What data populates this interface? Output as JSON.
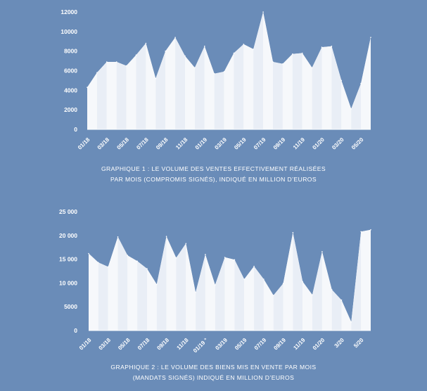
{
  "chart_data": [
    {
      "type": "area",
      "title": "GRAPHIQUE 1 : LE VOLUME DES VENTES EFFECTIVEMENT RÉALISÉES PAR MOIS (COMPROMIS SIGNÉS), INDIQUÉ EN MILLION D'EUROS",
      "caption_lines": [
        "GRAPHIQUE 1 : LE VOLUME DES VENTES EFFECTIVEMENT RÉALISÉES",
        "PAR MOIS (COMPROMIS SIGNÉS), INDIQUÉ EN MILLION D’EUROS"
      ],
      "ylim": [
        0,
        12000
      ],
      "yticks": [
        0,
        2000,
        4000,
        6000,
        8000,
        10000,
        12000
      ],
      "ytick_labels": [
        "0",
        "2000",
        "4000",
        "6000",
        "8000",
        "10000",
        "12000"
      ],
      "x_tick_labels": [
        "01/18",
        "03/18",
        "05/18",
        "07/18",
        "09/18",
        "11/18",
        "01/19",
        "03/19",
        "05/19",
        "07/19",
        "09/19",
        "11/19",
        "01/20",
        "03/20",
        "05/20"
      ],
      "values": [
        4300,
        5800,
        6900,
        6900,
        6500,
        7600,
        8800,
        5200,
        8000,
        9400,
        7500,
        6300,
        8500,
        5700,
        5900,
        7800,
        8700,
        8200,
        12000,
        6900,
        6700,
        7700,
        7800,
        6300,
        8400,
        8500,
        5000,
        2100,
        4700,
        9400
      ]
    },
    {
      "type": "area",
      "title": "GRAPHIQUE 2 : LE VOLUME DES BIENS MIS EN VENTE PAR MOIS (MANDATS SIGNÉS) INDIQUÉ EN MILLION D'EUROS",
      "caption_lines": [
        "GRAPHIQUE 2 : LE VOLUME DES BIENS MIS EN VENTE PAR MOIS",
        "(MANDATS SIGNÉS) INDIQUÉ EN MILLION D’EUROS"
      ],
      "ylim": [
        0,
        25000
      ],
      "yticks": [
        0,
        5000,
        10000,
        15000,
        20000,
        25000
      ],
      "ytick_labels": [
        "0",
        "5000",
        "10 000",
        "15 000",
        "20 000",
        "25 000"
      ],
      "x_tick_labels": [
        "01/18",
        "03/18",
        "05/18",
        "07/18",
        "09/18",
        "11/18",
        "01/19 °",
        "03/19",
        "05/19",
        "07/19",
        "09/19",
        "11/19",
        "01/20",
        "3/20",
        "5/20"
      ],
      "values": [
        16200,
        14300,
        13400,
        19700,
        15800,
        14600,
        13000,
        9700,
        19800,
        15300,
        18300,
        8000,
        16000,
        9600,
        15400,
        14900,
        10800,
        13500,
        10800,
        7400,
        9900,
        20600,
        10300,
        7500,
        16600,
        8600,
        6400,
        1800,
        20800,
        21200
      ]
    }
  ]
}
